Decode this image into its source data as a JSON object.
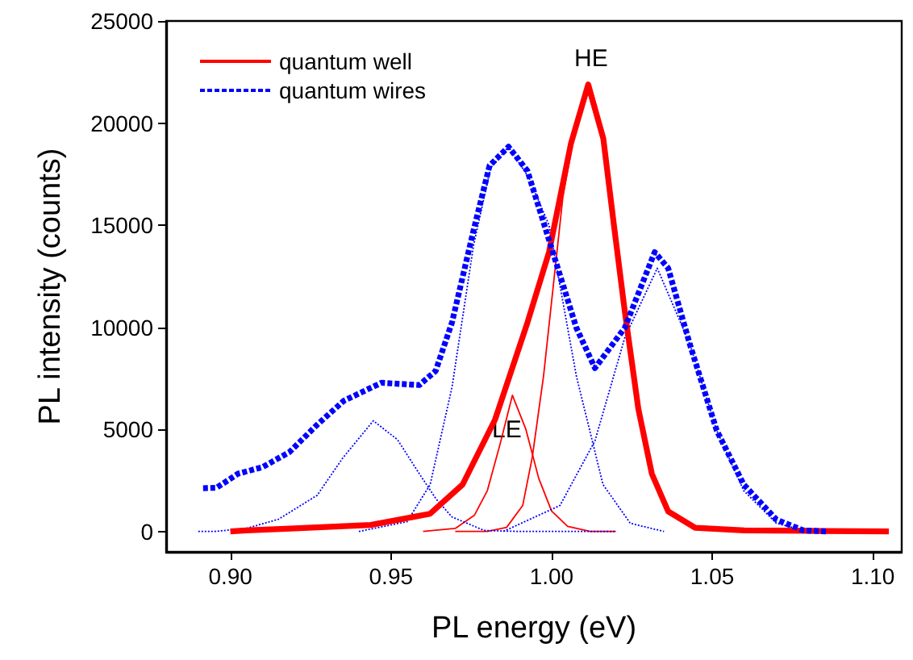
{
  "chart_data": {
    "type": "line",
    "xlabel": "PL energy (eV)",
    "ylabel": "PL intensity (counts)",
    "xlim": [
      0.88,
      1.109
    ],
    "xticks": [
      {
        "value": 0.9,
        "label": "0.90"
      },
      {
        "value": 0.95,
        "label": "0.95"
      },
      {
        "value": 1.0,
        "label": "1.00"
      },
      {
        "value": 1.05,
        "label": "1.05"
      },
      {
        "value": 1.1,
        "label": "1.10"
      }
    ],
    "ylim": [
      -1000,
      25000
    ],
    "yticks": [
      0,
      5000,
      10000,
      15000,
      20000,
      25000
    ],
    "grid": false,
    "legend": "top left",
    "marker": "none",
    "annotations": [
      "HE",
      "LE"
    ],
    "series": [
      {
        "name": "quantum well",
        "color": "#ff0000",
        "line_style": "solid",
        "x": [
          0.9,
          0.905,
          0.92,
          0.9437,
          0.9622,
          0.9723,
          0.9824,
          0.9925,
          0.9992,
          1.006,
          1.0114,
          1.0161,
          1.0194,
          1.0228,
          1.027,
          1.0312,
          1.0363,
          1.0447,
          1.06,
          1.08,
          1.105
        ],
        "values": [
          0,
          50,
          150,
          320,
          870,
          2300,
          5480,
          10240,
          13680,
          18980,
          21890,
          19240,
          15010,
          10770,
          6010,
          2830,
          980,
          180,
          50,
          30,
          0
        ]
      },
      {
        "name": "quantum wires",
        "color": "#0000ff",
        "line_style": "dashed",
        "x": [
          0.8915,
          0.8957,
          0.9024,
          0.91,
          0.9184,
          0.9269,
          0.9353,
          0.947,
          0.9588,
          0.9639,
          0.969,
          0.9757,
          0.9807,
          0.9866,
          0.9925,
          1.0009,
          1.0077,
          1.0135,
          1.0228,
          1.0321,
          1.0363,
          1.043,
          1.0514,
          1.0598,
          1.07,
          1.0784,
          1.086
        ],
        "values": [
          2120,
          2140,
          2830,
          3150,
          3890,
          5210,
          6400,
          7280,
          7170,
          7860,
          10240,
          14740,
          17920,
          18840,
          17650,
          13420,
          9980,
          8000,
          9980,
          13680,
          12890,
          9190,
          4950,
          2300,
          580,
          50,
          0
        ]
      },
      {
        "color": "#ff0000",
        "line_style": "solid",
        "x": [
          0.96,
          0.97,
          0.976,
          0.98,
          0.984,
          0.9878,
          0.992,
          0.996,
          1.0,
          1.005,
          1.012,
          1.02
        ],
        "values": [
          0,
          150,
          800,
          2000,
          4300,
          6670,
          5000,
          2600,
          1000,
          250,
          0,
          0
        ]
      },
      {
        "color": "#ff0000",
        "line_style": "solid",
        "x": [
          0.97,
          0.98,
          0.986,
          0.991,
          0.994,
          0.9975,
          1.0035,
          1.008,
          1.0114,
          1.016,
          1.0194,
          1.0228,
          1.027,
          1.031,
          1.036,
          1.045,
          1.06
        ],
        "values": [
          0,
          0,
          200,
          1270,
          3650,
          7620,
          16360,
          20300,
          21500,
          19000,
          14800,
          10600,
          5900,
          2800,
          950,
          150,
          0
        ]
      },
      {
        "color": "#0000ff",
        "line_style": "dotted",
        "x": [
          0.89,
          0.895,
          0.905,
          0.915,
          0.927,
          0.935,
          0.9445,
          0.952,
          0.9588,
          0.964,
          0.969,
          0.979,
          0.99,
          1.02
        ],
        "values": [
          0,
          0,
          150,
          600,
          1770,
          3600,
          5420,
          4500,
          2830,
          1600,
          710,
          50,
          0,
          0
        ]
      },
      {
        "color": "#0000ff",
        "line_style": "dotted",
        "x": [
          0.94,
          0.955,
          0.9622,
          0.969,
          0.9757,
          0.981,
          0.9866,
          0.993,
          0.9992,
          1.0077,
          1.016,
          1.0245,
          1.035
        ],
        "values": [
          0,
          480,
          2300,
          7070,
          14000,
          17800,
          18840,
          17300,
          15000,
          7620,
          2300,
          400,
          0
        ]
      },
      {
        "color": "#0000ff",
        "line_style": "dotted",
        "x": [
          0.985,
          1.0026,
          1.0135,
          1.0228,
          1.0329,
          1.043,
          1.0514,
          1.0598,
          1.07,
          1.08
        ],
        "values": [
          0,
          1270,
          4440,
          9500,
          12890,
          9190,
          4950,
          2000,
          400,
          0
        ]
      }
    ]
  }
}
